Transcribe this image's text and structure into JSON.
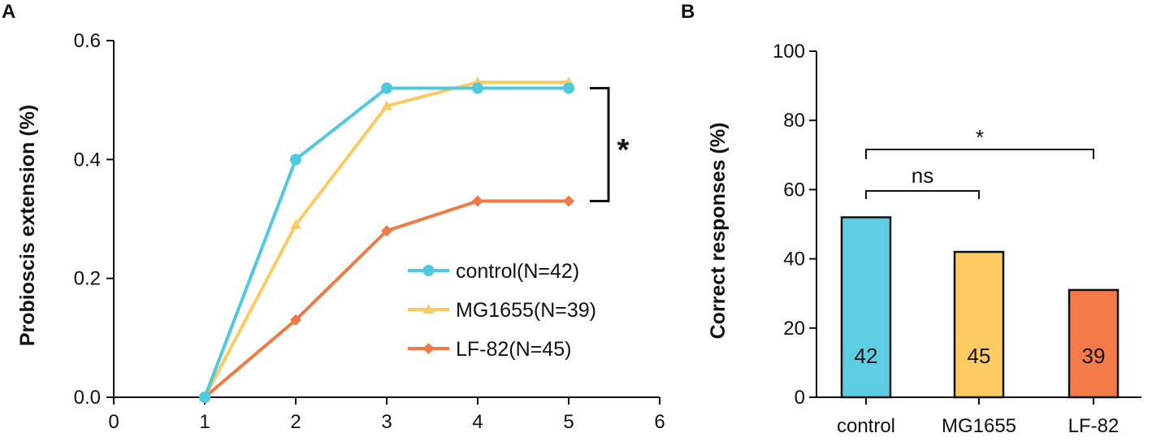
{
  "panels": {
    "a": "A",
    "b": "B"
  },
  "chart_data": [
    {
      "type": "line",
      "ylabel": "Probioscis extension (%)",
      "xlabel": "",
      "xlim": [
        0,
        6
      ],
      "ylim": [
        0,
        0.6
      ],
      "x_ticks": [
        "0",
        "1",
        "2",
        "3",
        "4",
        "5",
        "6"
      ],
      "y_ticks": [
        "0.0",
        "0.2",
        "0.4",
        "0.6"
      ],
      "x": [
        1,
        2,
        3,
        4,
        5
      ],
      "series": [
        {
          "name": "control(N=42)",
          "color": "#4fc8e0",
          "marker": "circle",
          "values": [
            0.0,
            0.4,
            0.52,
            0.52,
            0.52
          ]
        },
        {
          "name": "MG1655(N=39)",
          "color": "#fbcb62",
          "marker": "triangle",
          "values": [
            0.0,
            0.29,
            0.49,
            0.53,
            0.53
          ]
        },
        {
          "name": "LF-82(N=45)",
          "color": "#f07a46",
          "marker": "diamond",
          "values": [
            0.0,
            0.13,
            0.28,
            0.33,
            0.33
          ]
        }
      ],
      "legend_position": "center-right",
      "annotations": [
        {
          "text": "*",
          "between": [
            "control(N=42)",
            "LF-82(N=45)"
          ],
          "at_x": 5
        }
      ]
    },
    {
      "type": "bar",
      "ylabel": "Correct responses (%)",
      "xlabel": "",
      "ylim": [
        0,
        100
      ],
      "y_ticks": [
        "0",
        "20",
        "40",
        "60",
        "80",
        "100"
      ],
      "categories": [
        "control",
        "MG1655",
        "LF-82"
      ],
      "values": [
        52,
        42,
        31
      ],
      "bar_labels": [
        "42",
        "45",
        "39"
      ],
      "colors": [
        "#5ccde3",
        "#fdcb62",
        "#f47a47"
      ],
      "annotations": [
        {
          "text": "ns",
          "from": "control",
          "to": "MG1655"
        },
        {
          "text": "*",
          "from": "control",
          "to": "LF-82"
        }
      ]
    }
  ]
}
